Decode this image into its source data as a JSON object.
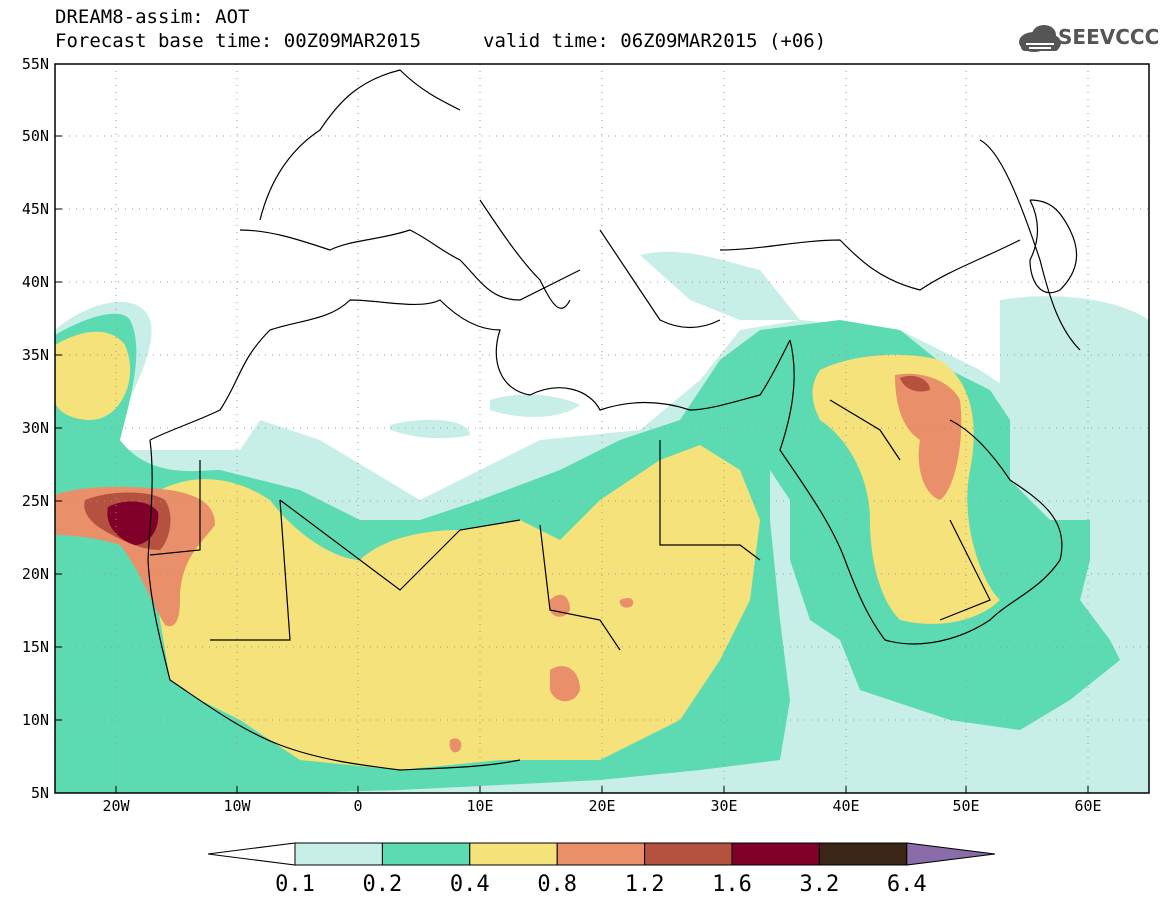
{
  "header": {
    "model_line": "DREAM8-assim: AOT",
    "base_time": "Forecast base time: 00Z09MAR2015",
    "valid_time": "valid time: 06Z09MAR2015 (+06)"
  },
  "logo": {
    "text": "SEEVCCC",
    "icon": "cloud-logo-icon"
  },
  "map": {
    "lat_labels": [
      "55N",
      "50N",
      "45N",
      "40N",
      "35N",
      "30N",
      "25N",
      "20N",
      "15N",
      "10N",
      "5N"
    ],
    "lon_labels": [
      "20W",
      "10W",
      "0",
      "10E",
      "20E",
      "30E",
      "40E",
      "50E",
      "60E"
    ],
    "lon_range": [
      "25W",
      "65E"
    ],
    "lat_range": [
      "5N",
      "55N"
    ],
    "grid": "dotted"
  },
  "colorbar": {
    "labels": [
      "0.1",
      "0.2",
      "0.4",
      "0.8",
      "1.2",
      "1.6",
      "3.2",
      "6.4"
    ],
    "colors": [
      "#ffffff",
      "#c7efe8",
      "#5cdab2",
      "#f5e27a",
      "#e9906a",
      "#b5523f",
      "#80002a",
      "#3a2516",
      "#8a6da8"
    ]
  },
  "colors": {
    "level_0_1": "#c7efe8",
    "level_0_2": "#5cdab2",
    "level_0_4": "#f5e27a",
    "level_0_8": "#e9906a",
    "level_1_2": "#b5523f",
    "level_1_6": "#80002a"
  }
}
